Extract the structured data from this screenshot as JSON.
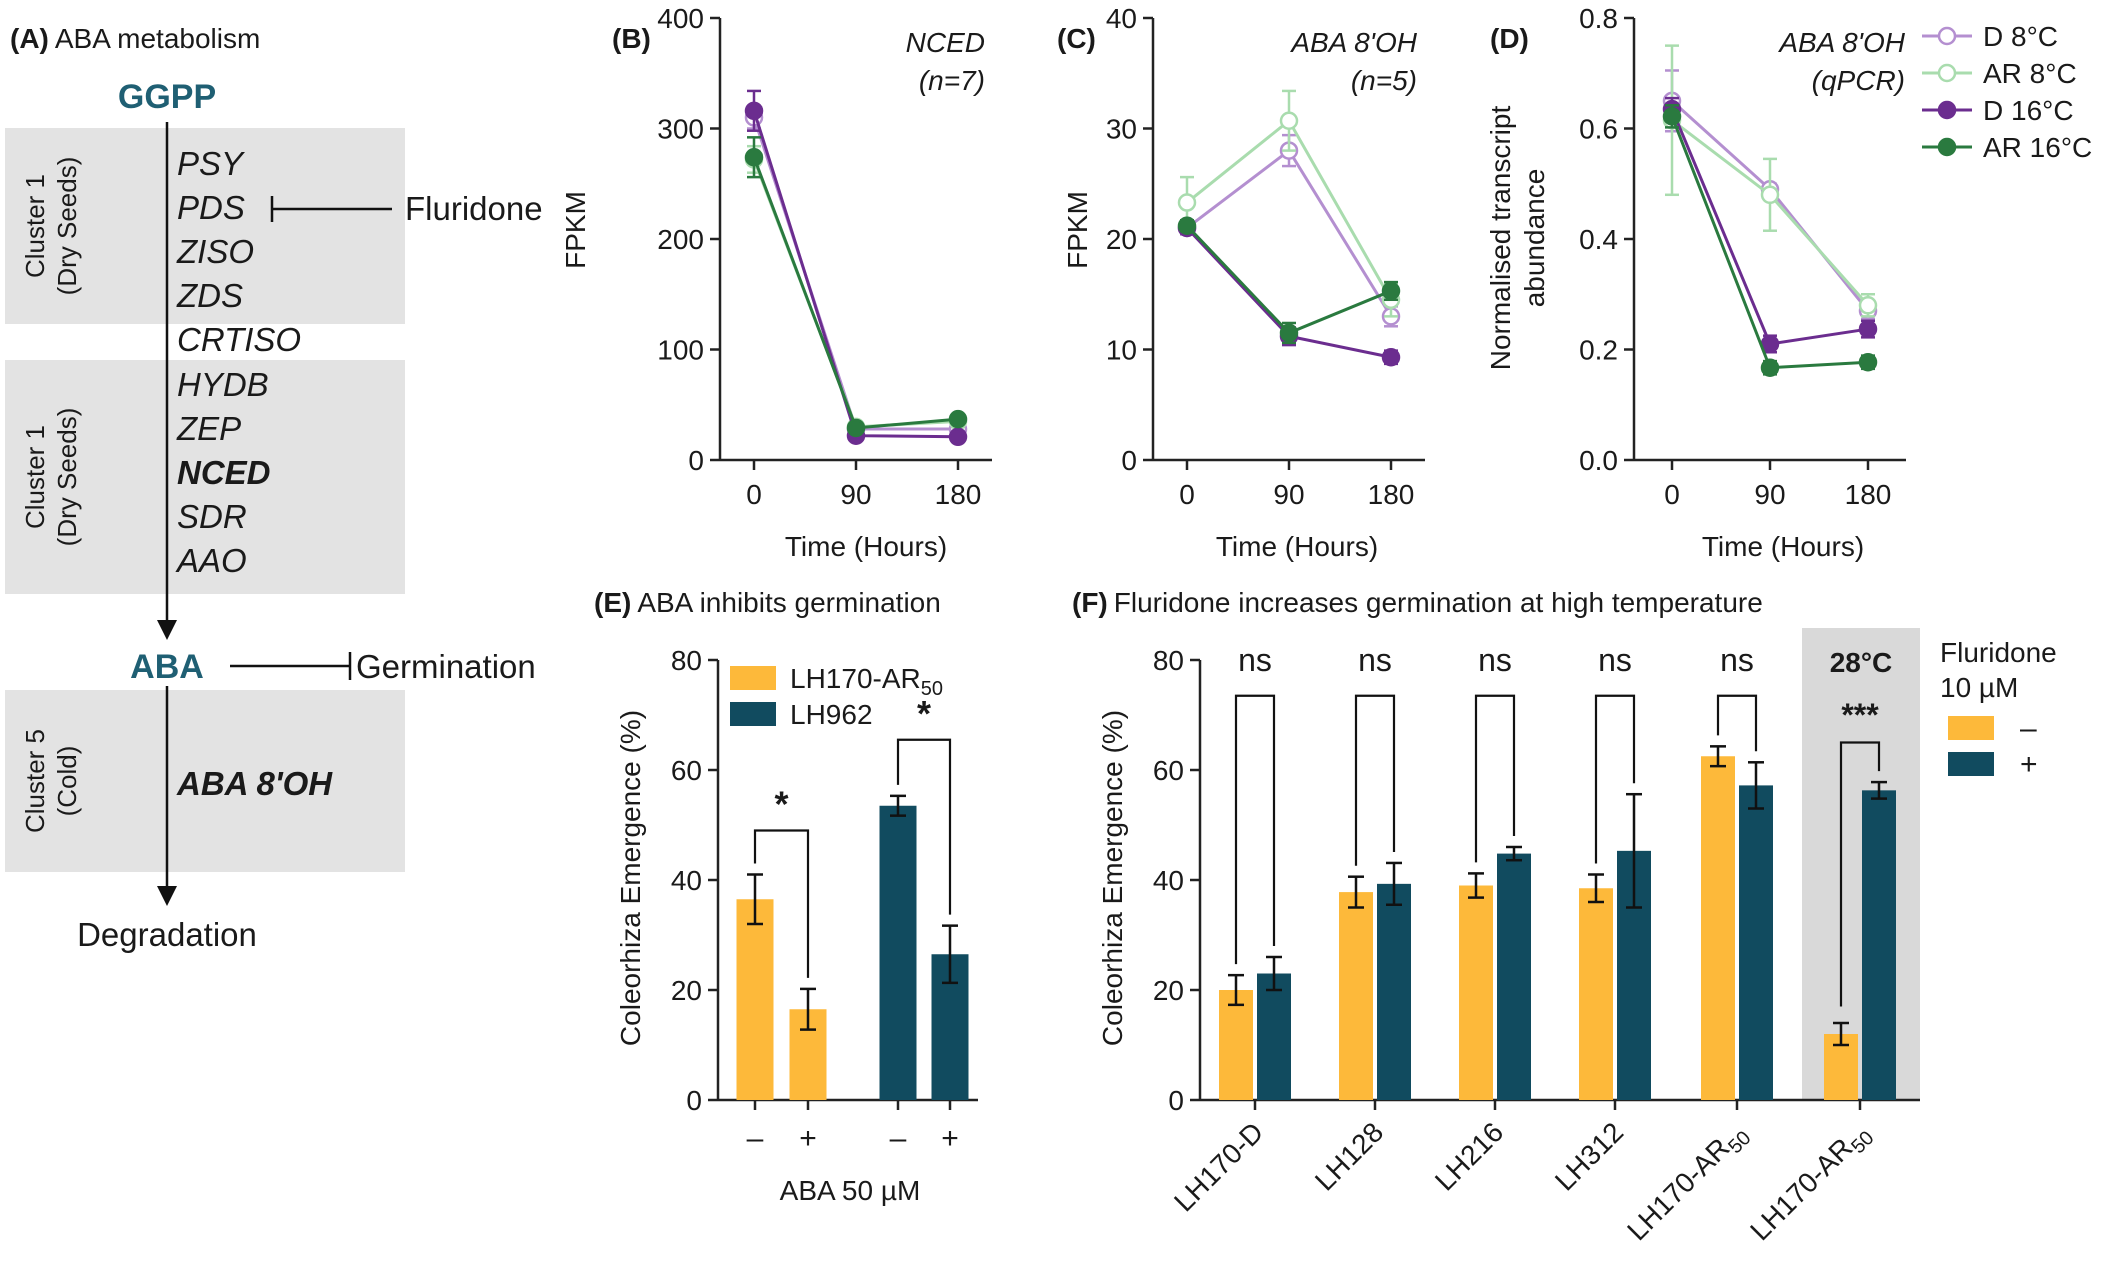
{
  "colors": {
    "purple_dark": "#6b2d8f",
    "purple_light": "#b48fd0",
    "green_dark": "#2a7a3f",
    "green_light": "#a9dcae",
    "orange": "#fdb93a",
    "teal": "#114b5f",
    "abba_text": "#1f5f73",
    "cluster_bg": "#e3e3e3"
  },
  "panel_a": {
    "tag": "(A)",
    "title": "ABA metabolism",
    "start": "GGPP",
    "clusters": [
      {
        "label1": "Cluster 1",
        "label2": "(Dry Seeds)"
      },
      {
        "label1": "Cluster 1",
        "label2": "(Dry Seeds)"
      },
      {
        "label1": "Cluster 5",
        "label2": "(Cold)"
      }
    ],
    "genes": [
      "PSY",
      "PDS",
      "ZISO",
      "ZDS",
      "CRTISO",
      "HYDB",
      "ZEP",
      "NCED",
      "SDR",
      "AAO"
    ],
    "inhibitor": "Fluridone",
    "aba": "ABA",
    "germination": "Germination",
    "catab_gene": "ABA 8'OH",
    "end": "Degradation"
  },
  "chart_data": [
    {
      "id": "B",
      "type": "line",
      "tag": "(B)",
      "title": "NCED",
      "subtitle": "(n=7)",
      "xlabel": "Time (Hours)",
      "ylabel": "FPKM",
      "x": [
        0,
        90,
        180
      ],
      "ylim": [
        0,
        400
      ],
      "yticks": [
        "0",
        "100",
        "200",
        "300",
        "400"
      ],
      "xticks": [
        "0",
        "90",
        "180"
      ],
      "series": [
        {
          "style": "purple_light_open",
          "values": [
            310,
            28,
            28
          ],
          "err": [
            10,
            2,
            2
          ]
        },
        {
          "style": "green_light_open",
          "values": [
            272,
            30,
            35
          ],
          "err": [
            12,
            2,
            2
          ]
        },
        {
          "style": "purple_dark_fill",
          "values": [
            316,
            22,
            21
          ],
          "err": [
            18,
            2,
            2
          ]
        },
        {
          "style": "green_dark_fill",
          "values": [
            274,
            29,
            37
          ],
          "err": [
            18,
            2,
            3
          ]
        }
      ]
    },
    {
      "id": "C",
      "type": "line",
      "tag": "(C)",
      "title": "ABA 8'OH",
      "subtitle": "(n=5)",
      "xlabel": "Time (Hours)",
      "ylabel": "FPKM",
      "x": [
        0,
        90,
        180
      ],
      "ylim": [
        0,
        40
      ],
      "yticks": [
        "0",
        "10",
        "20",
        "30",
        "40"
      ],
      "xticks": [
        "0",
        "90",
        "180"
      ],
      "series": [
        {
          "style": "purple_light_open",
          "values": [
            21,
            28,
            13
          ],
          "err": [
            0.6,
            1.4,
            0.9
          ]
        },
        {
          "style": "green_light_open",
          "values": [
            23.3,
            30.7,
            14.5
          ],
          "err": [
            2.3,
            2.7,
            1.5
          ]
        },
        {
          "style": "purple_dark_fill",
          "values": [
            21,
            11.2,
            9.3
          ],
          "err": [
            0.5,
            0.8,
            0.6
          ]
        },
        {
          "style": "green_dark_fill",
          "values": [
            21.2,
            11.5,
            15.3
          ],
          "err": [
            0.5,
            0.9,
            0.8
          ]
        }
      ]
    },
    {
      "id": "D",
      "type": "line",
      "tag": "(D)",
      "title": "ABA 8'OH",
      "subtitle": "(qPCR)",
      "xlabel": "Time (Hours)",
      "ylabel_lines": [
        "Normalised transcript",
        "abundance"
      ],
      "x": [
        0,
        90,
        180
      ],
      "ylim": [
        0,
        0.8
      ],
      "yticks": [
        "0.0",
        "0.2",
        "0.4",
        "0.6",
        "0.8"
      ],
      "xticks": [
        "0",
        "90",
        "180"
      ],
      "legend": [
        "D 8°C",
        "AR 8°C",
        "D 16°C",
        "AR 16°C"
      ],
      "series": [
        {
          "name": "D 8°C",
          "style": "purple_light_open",
          "values": [
            0.65,
            0.49,
            0.27
          ],
          "err": [
            0.055,
            0.01,
            0.015
          ]
        },
        {
          "name": "AR 8°C",
          "style": "green_light_open",
          "values": [
            0.615,
            0.48,
            0.28
          ],
          "err": [
            0.135,
            0.065,
            0.02
          ]
        },
        {
          "name": "D 16°C",
          "style": "purple_dark_fill",
          "values": [
            0.635,
            0.21,
            0.237
          ],
          "err": [
            0.02,
            0.015,
            0.015
          ]
        },
        {
          "name": "AR 16°C",
          "style": "green_dark_fill",
          "values": [
            0.622,
            0.167,
            0.177
          ],
          "err": [
            0.02,
            0.012,
            0.012
          ]
        }
      ]
    },
    {
      "id": "E",
      "type": "bar",
      "tag": "(E)",
      "title": "ABA inhibits germination",
      "ylabel": "Coleorhiza  Emergence (%)",
      "xlabel": "ABA 50 µM",
      "ylim": [
        0,
        80
      ],
      "yticks": [
        "0",
        "20",
        "40",
        "60",
        "80"
      ],
      "legend": [
        {
          "name": "LH170-AR",
          "sub": "50",
          "color": "orange"
        },
        {
          "name": "LH962",
          "sub": "",
          "color": "teal"
        }
      ],
      "bars": [
        {
          "value": 36.5,
          "err": 4.5,
          "color": "orange",
          "label": "–"
        },
        {
          "value": 16.5,
          "err": 3.7,
          "color": "orange",
          "label": "+"
        },
        {
          "value": 53.5,
          "err": 1.8,
          "color": "teal",
          "label": "–"
        },
        {
          "value": 26.5,
          "err": 5.2,
          "color": "teal",
          "label": "+"
        }
      ],
      "sig": [
        "*",
        "*"
      ]
    },
    {
      "id": "F",
      "type": "bar",
      "tag": "(F)",
      "title": "Fluridone increases germination at high temperature",
      "ylabel": "Coleorhiza  Emergence (%)",
      "ylim": [
        0,
        80
      ],
      "yticks": [
        "0",
        "20",
        "40",
        "60",
        "80"
      ],
      "legend_title_1": "Fluridone",
      "legend_title_2": "10 µM",
      "legend": [
        {
          "name": "–",
          "color": "orange"
        },
        {
          "name": "+",
          "color": "teal"
        }
      ],
      "highlight_label": "28°C",
      "groups": [
        {
          "label": "LH170-D",
          "sub": "",
          "minus": 20,
          "minus_err": 2.7,
          "plus": 23,
          "plus_err": 3,
          "sig": "ns"
        },
        {
          "label": "LH128",
          "sub": "",
          "minus": 37.8,
          "minus_err": 2.8,
          "plus": 39.3,
          "plus_err": 3.8,
          "sig": "ns"
        },
        {
          "label": "LH216",
          "sub": "",
          "minus": 39,
          "minus_err": 2.2,
          "plus": 44.8,
          "plus_err": 1.2,
          "sig": "ns"
        },
        {
          "label": "LH312",
          "sub": "",
          "minus": 38.5,
          "minus_err": 2.5,
          "plus": 45.3,
          "plus_err": 10.3,
          "sig": "ns"
        },
        {
          "label": "LH170-AR",
          "sub": "50",
          "minus": 62.5,
          "minus_err": 1.8,
          "plus": 57.2,
          "plus_err": 4.2,
          "sig": "ns"
        },
        {
          "label": "LH170-AR",
          "sub": "50",
          "minus": 12,
          "minus_err": 2,
          "plus": 56.3,
          "plus_err": 1.5,
          "sig": "***",
          "highlight": true
        }
      ]
    }
  ]
}
